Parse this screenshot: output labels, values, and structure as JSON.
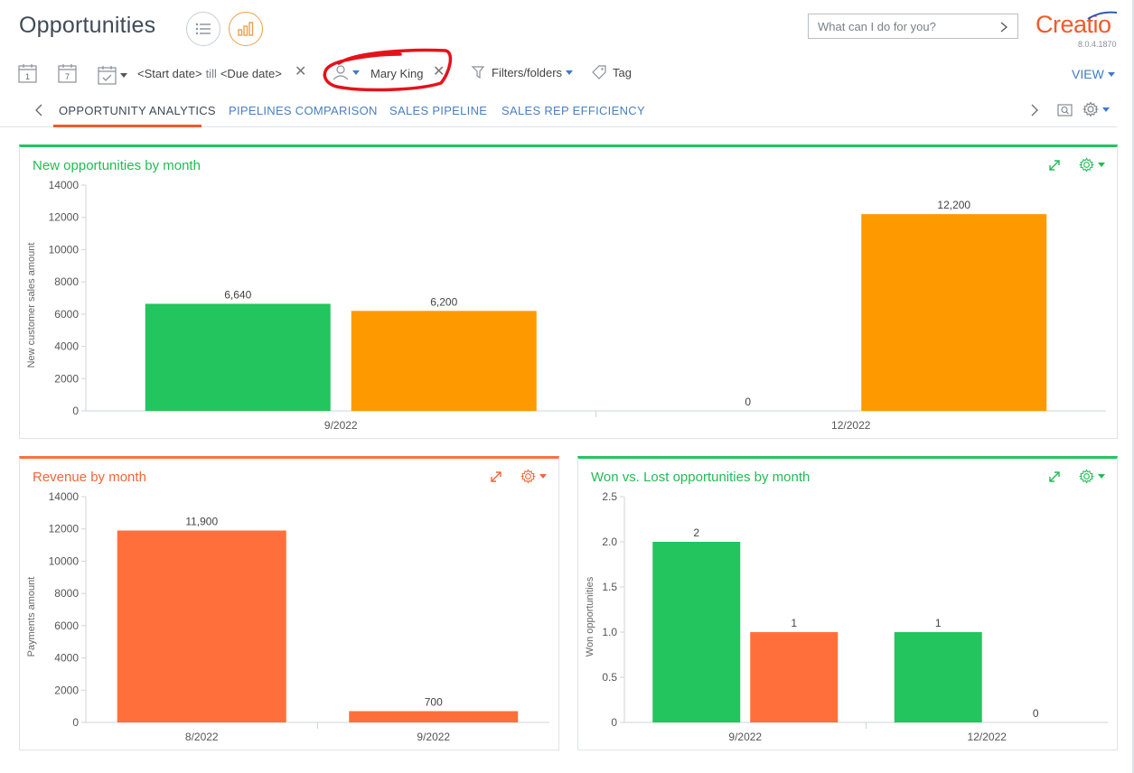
{
  "header": {
    "title": "Opportunities",
    "search_placeholder": "What can I do for you?",
    "logo_text": "Creatio",
    "version": "8.0.4.1870"
  },
  "filters": {
    "start_date": "<Start date>",
    "till": "till",
    "due_date": "<Due date>",
    "owner": "Mary King",
    "filters_folders": "Filters/folders",
    "tag": "Tag",
    "view": "VIEW",
    "cal_day_1": "1",
    "cal_day_7": "7"
  },
  "tabs": [
    {
      "label": "OPPORTUNITY ANALYTICS",
      "active": true
    },
    {
      "label": "PIPELINES COMPARISON",
      "active": false
    },
    {
      "label": "SALES PIPELINE",
      "active": false
    },
    {
      "label": "SALES REP EFFICIENCY",
      "active": false
    }
  ],
  "colors": {
    "green": "#22c55e",
    "orange_new": "#ff9900",
    "orange_red": "#ff6f3c",
    "accent": "#f05a28",
    "link": "#4a7fc1"
  },
  "widgets": {
    "new_opps": {
      "title": "New opportunities by month"
    },
    "revenue": {
      "title": "Revenue by month"
    },
    "won_lost": {
      "title": "Won vs. Lost opportunities by month"
    }
  },
  "chart_data": [
    {
      "id": "new_opps",
      "type": "bar",
      "title": "New opportunities by month",
      "ylabel": "New customer sales amount",
      "xlabel": "",
      "categories": [
        "9/2022",
        "12/2022"
      ],
      "ylim": [
        0,
        14000
      ],
      "yticks": [
        "0",
        "2000",
        "4000",
        "6000",
        "8000",
        "10000",
        "12000",
        "14000"
      ],
      "series": [
        {
          "values": [
            6640,
            0
          ],
          "labels": [
            "6,640",
            "0"
          ],
          "color": "#22c55e"
        },
        {
          "values": [
            6200,
            12200
          ],
          "labels": [
            "6,200",
            "12,200"
          ],
          "color": "#ff9900"
        }
      ],
      "grid": false
    },
    {
      "id": "revenue",
      "type": "bar",
      "title": "Revenue by month",
      "ylabel": "Payments amount",
      "xlabel": "",
      "categories": [
        "8/2022",
        "9/2022"
      ],
      "ylim": [
        0,
        14000
      ],
      "yticks": [
        "0",
        "2000",
        "4000",
        "6000",
        "8000",
        "10000",
        "12000",
        "14000"
      ],
      "series": [
        {
          "values": [
            11900,
            700
          ],
          "labels": [
            "11,900",
            "700"
          ],
          "color": "#ff6f3c"
        }
      ],
      "grid": false
    },
    {
      "id": "won_lost",
      "type": "bar",
      "title": "Won vs. Lost opportunities by month",
      "ylabel": "Won opportunities",
      "xlabel": "",
      "categories": [
        "9/2022",
        "12/2022"
      ],
      "ylim": [
        0,
        2.5
      ],
      "yticks": [
        "0",
        "0.5",
        "1.0",
        "1.5",
        "2.0",
        "2.5"
      ],
      "series": [
        {
          "values": [
            2,
            1
          ],
          "labels": [
            "2",
            "1"
          ],
          "color": "#22c55e"
        },
        {
          "values": [
            1,
            0
          ],
          "labels": [
            "1",
            "0"
          ],
          "color": "#ff6f3c"
        }
      ],
      "grid": false
    }
  ]
}
